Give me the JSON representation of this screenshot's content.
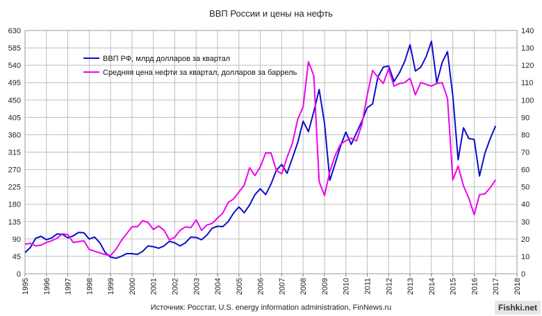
{
  "page": {
    "source_note": "Источник: Росстат, U.S. energy information administration, FinNews.ru",
    "watermark": "Fishki.net"
  },
  "chart_data": {
    "type": "line",
    "title": "ВВП России и цены на нефть",
    "xlabel": "",
    "ylabel": "",
    "x_ticks": [
      "1995",
      "1996",
      "1997",
      "1998",
      "1999",
      "2000",
      "2001",
      "2002",
      "2003",
      "2004",
      "2005",
      "2006",
      "2007",
      "2008",
      "2009",
      "2010",
      "2011",
      "2012",
      "2013",
      "2014",
      "2015",
      "2016",
      "2017",
      "2018"
    ],
    "xlim": [
      1995,
      2018
    ],
    "y_left": {
      "lim": [
        0,
        630
      ],
      "ticks": [
        "0",
        "45",
        "90",
        "135",
        "180",
        "225",
        "270",
        "315",
        "360",
        "405",
        "450",
        "495",
        "540",
        "585",
        "630"
      ]
    },
    "y_right": {
      "lim": [
        0,
        140
      ],
      "ticks": [
        "0",
        "10",
        "20",
        "30",
        "40",
        "50",
        "60",
        "70",
        "80",
        "90",
        "100",
        "110",
        "120",
        "130",
        "140"
      ]
    },
    "grid": true,
    "legend_position": "top-left",
    "series": [
      {
        "name": "ВВП РФ, млрд долларов за квартал",
        "axis": "left",
        "color": "#0b0bcc",
        "points": [
          [
            1995.0,
            55
          ],
          [
            1995.25,
            68
          ],
          [
            1995.5,
            92
          ],
          [
            1995.75,
            97
          ],
          [
            1996.0,
            88
          ],
          [
            1996.25,
            93
          ],
          [
            1996.5,
            103
          ],
          [
            1996.75,
            102
          ],
          [
            1997.0,
            93
          ],
          [
            1997.25,
            98
          ],
          [
            1997.5,
            107
          ],
          [
            1997.75,
            106
          ],
          [
            1998.0,
            90
          ],
          [
            1998.25,
            95
          ],
          [
            1998.5,
            80
          ],
          [
            1998.75,
            55
          ],
          [
            1999.0,
            43
          ],
          [
            1999.25,
            40
          ],
          [
            1999.5,
            45
          ],
          [
            1999.75,
            52
          ],
          [
            2000.0,
            52
          ],
          [
            2000.25,
            50
          ],
          [
            2000.5,
            58
          ],
          [
            2000.75,
            72
          ],
          [
            2001.0,
            70
          ],
          [
            2001.25,
            66
          ],
          [
            2001.5,
            72
          ],
          [
            2001.75,
            84
          ],
          [
            2002.0,
            80
          ],
          [
            2002.25,
            72
          ],
          [
            2002.5,
            80
          ],
          [
            2002.75,
            95
          ],
          [
            2003.0,
            94
          ],
          [
            2003.25,
            88
          ],
          [
            2003.5,
            100
          ],
          [
            2003.75,
            118
          ],
          [
            2004.0,
            123
          ],
          [
            2004.25,
            122
          ],
          [
            2004.5,
            135
          ],
          [
            2004.75,
            157
          ],
          [
            2005.0,
            173
          ],
          [
            2005.25,
            158
          ],
          [
            2005.5,
            178
          ],
          [
            2005.75,
            205
          ],
          [
            2006.0,
            220
          ],
          [
            2006.25,
            205
          ],
          [
            2006.5,
            232
          ],
          [
            2006.75,
            268
          ],
          [
            2007.0,
            283
          ],
          [
            2007.25,
            260
          ],
          [
            2007.5,
            300
          ],
          [
            2007.75,
            340
          ],
          [
            2008.0,
            395
          ],
          [
            2008.25,
            368
          ],
          [
            2008.5,
            420
          ],
          [
            2008.75,
            477
          ],
          [
            2009.0,
            390
          ],
          [
            2009.25,
            242
          ],
          [
            2009.5,
            285
          ],
          [
            2009.75,
            330
          ],
          [
            2010.0,
            367
          ],
          [
            2010.25,
            335
          ],
          [
            2010.5,
            365
          ],
          [
            2010.75,
            395
          ],
          [
            2011.0,
            430
          ],
          [
            2011.25,
            440
          ],
          [
            2011.5,
            510
          ],
          [
            2011.75,
            535
          ],
          [
            2012.0,
            538
          ],
          [
            2012.25,
            498
          ],
          [
            2012.5,
            520
          ],
          [
            2012.75,
            550
          ],
          [
            2013.0,
            593
          ],
          [
            2013.25,
            525
          ],
          [
            2013.5,
            535
          ],
          [
            2013.75,
            562
          ],
          [
            2014.0,
            602
          ],
          [
            2014.25,
            495
          ],
          [
            2014.5,
            547
          ],
          [
            2014.75,
            575
          ],
          [
            2015.0,
            460
          ],
          [
            2015.25,
            295
          ],
          [
            2015.5,
            378
          ],
          [
            2015.75,
            350
          ],
          [
            2016.0,
            348
          ],
          [
            2016.25,
            253
          ],
          [
            2016.5,
            312
          ],
          [
            2016.75,
            350
          ],
          [
            2017.0,
            383
          ]
        ]
      },
      {
        "name": "Средняя цена нефти за квартал, долларов за баррель",
        "axis": "right",
        "color": "#ee00ee",
        "points": [
          [
            1995.0,
            17
          ],
          [
            1995.25,
            17.5
          ],
          [
            1995.5,
            16
          ],
          [
            1995.75,
            16.5
          ],
          [
            1996.0,
            18
          ],
          [
            1996.25,
            19
          ],
          [
            1996.5,
            20.5
          ],
          [
            1996.75,
            23
          ],
          [
            1997.0,
            22.5
          ],
          [
            1997.25,
            18
          ],
          [
            1997.5,
            18.5
          ],
          [
            1997.75,
            19
          ],
          [
            1998.0,
            14
          ],
          [
            1998.25,
            13
          ],
          [
            1998.5,
            12
          ],
          [
            1998.75,
            11
          ],
          [
            1999.0,
            10.5
          ],
          [
            1999.25,
            14
          ],
          [
            1999.5,
            19
          ],
          [
            1999.75,
            23
          ],
          [
            2000.0,
            27
          ],
          [
            2000.25,
            27
          ],
          [
            2000.5,
            30.5
          ],
          [
            2000.75,
            29.5
          ],
          [
            2001.0,
            25.5
          ],
          [
            2001.25,
            27.5
          ],
          [
            2001.5,
            25
          ],
          [
            2001.75,
            19.5
          ],
          [
            2002.0,
            21
          ],
          [
            2002.25,
            25
          ],
          [
            2002.5,
            27
          ],
          [
            2002.75,
            26.5
          ],
          [
            2003.0,
            31
          ],
          [
            2003.25,
            25
          ],
          [
            2003.5,
            28
          ],
          [
            2003.75,
            29
          ],
          [
            2004.0,
            32
          ],
          [
            2004.25,
            35
          ],
          [
            2004.5,
            41
          ],
          [
            2004.75,
            43
          ],
          [
            2005.0,
            47
          ],
          [
            2005.25,
            51
          ],
          [
            2005.5,
            61
          ],
          [
            2005.75,
            56.5
          ],
          [
            2006.0,
            61.5
          ],
          [
            2006.25,
            69.5
          ],
          [
            2006.5,
            69.5
          ],
          [
            2006.75,
            59.5
          ],
          [
            2007.0,
            57.5
          ],
          [
            2007.25,
            67
          ],
          [
            2007.5,
            75
          ],
          [
            2007.75,
            89
          ],
          [
            2008.0,
            96
          ],
          [
            2008.25,
            122
          ],
          [
            2008.5,
            114
          ],
          [
            2008.75,
            53
          ],
          [
            2009.0,
            45
          ],
          [
            2009.25,
            59
          ],
          [
            2009.5,
            68
          ],
          [
            2009.75,
            74.5
          ],
          [
            2010.0,
            76.5
          ],
          [
            2010.25,
            78
          ],
          [
            2010.5,
            76.5
          ],
          [
            2010.75,
            86
          ],
          [
            2011.0,
            103
          ],
          [
            2011.25,
            117
          ],
          [
            2011.5,
            113
          ],
          [
            2011.75,
            109.5
          ],
          [
            2012.0,
            118
          ],
          [
            2012.25,
            108
          ],
          [
            2012.5,
            109.5
          ],
          [
            2012.75,
            110
          ],
          [
            2013.0,
            112.5
          ],
          [
            2013.25,
            103
          ],
          [
            2013.5,
            110
          ],
          [
            2013.75,
            109
          ],
          [
            2014.0,
            108
          ],
          [
            2014.25,
            109.5
          ],
          [
            2014.5,
            110
          ],
          [
            2014.75,
            101
          ],
          [
            2015.0,
            54
          ],
          [
            2015.25,
            62
          ],
          [
            2015.5,
            50.5
          ],
          [
            2015.75,
            43.5
          ],
          [
            2016.0,
            34
          ],
          [
            2016.25,
            45.5
          ],
          [
            2016.5,
            46
          ],
          [
            2016.75,
            49.5
          ],
          [
            2017.0,
            54
          ]
        ]
      }
    ]
  }
}
